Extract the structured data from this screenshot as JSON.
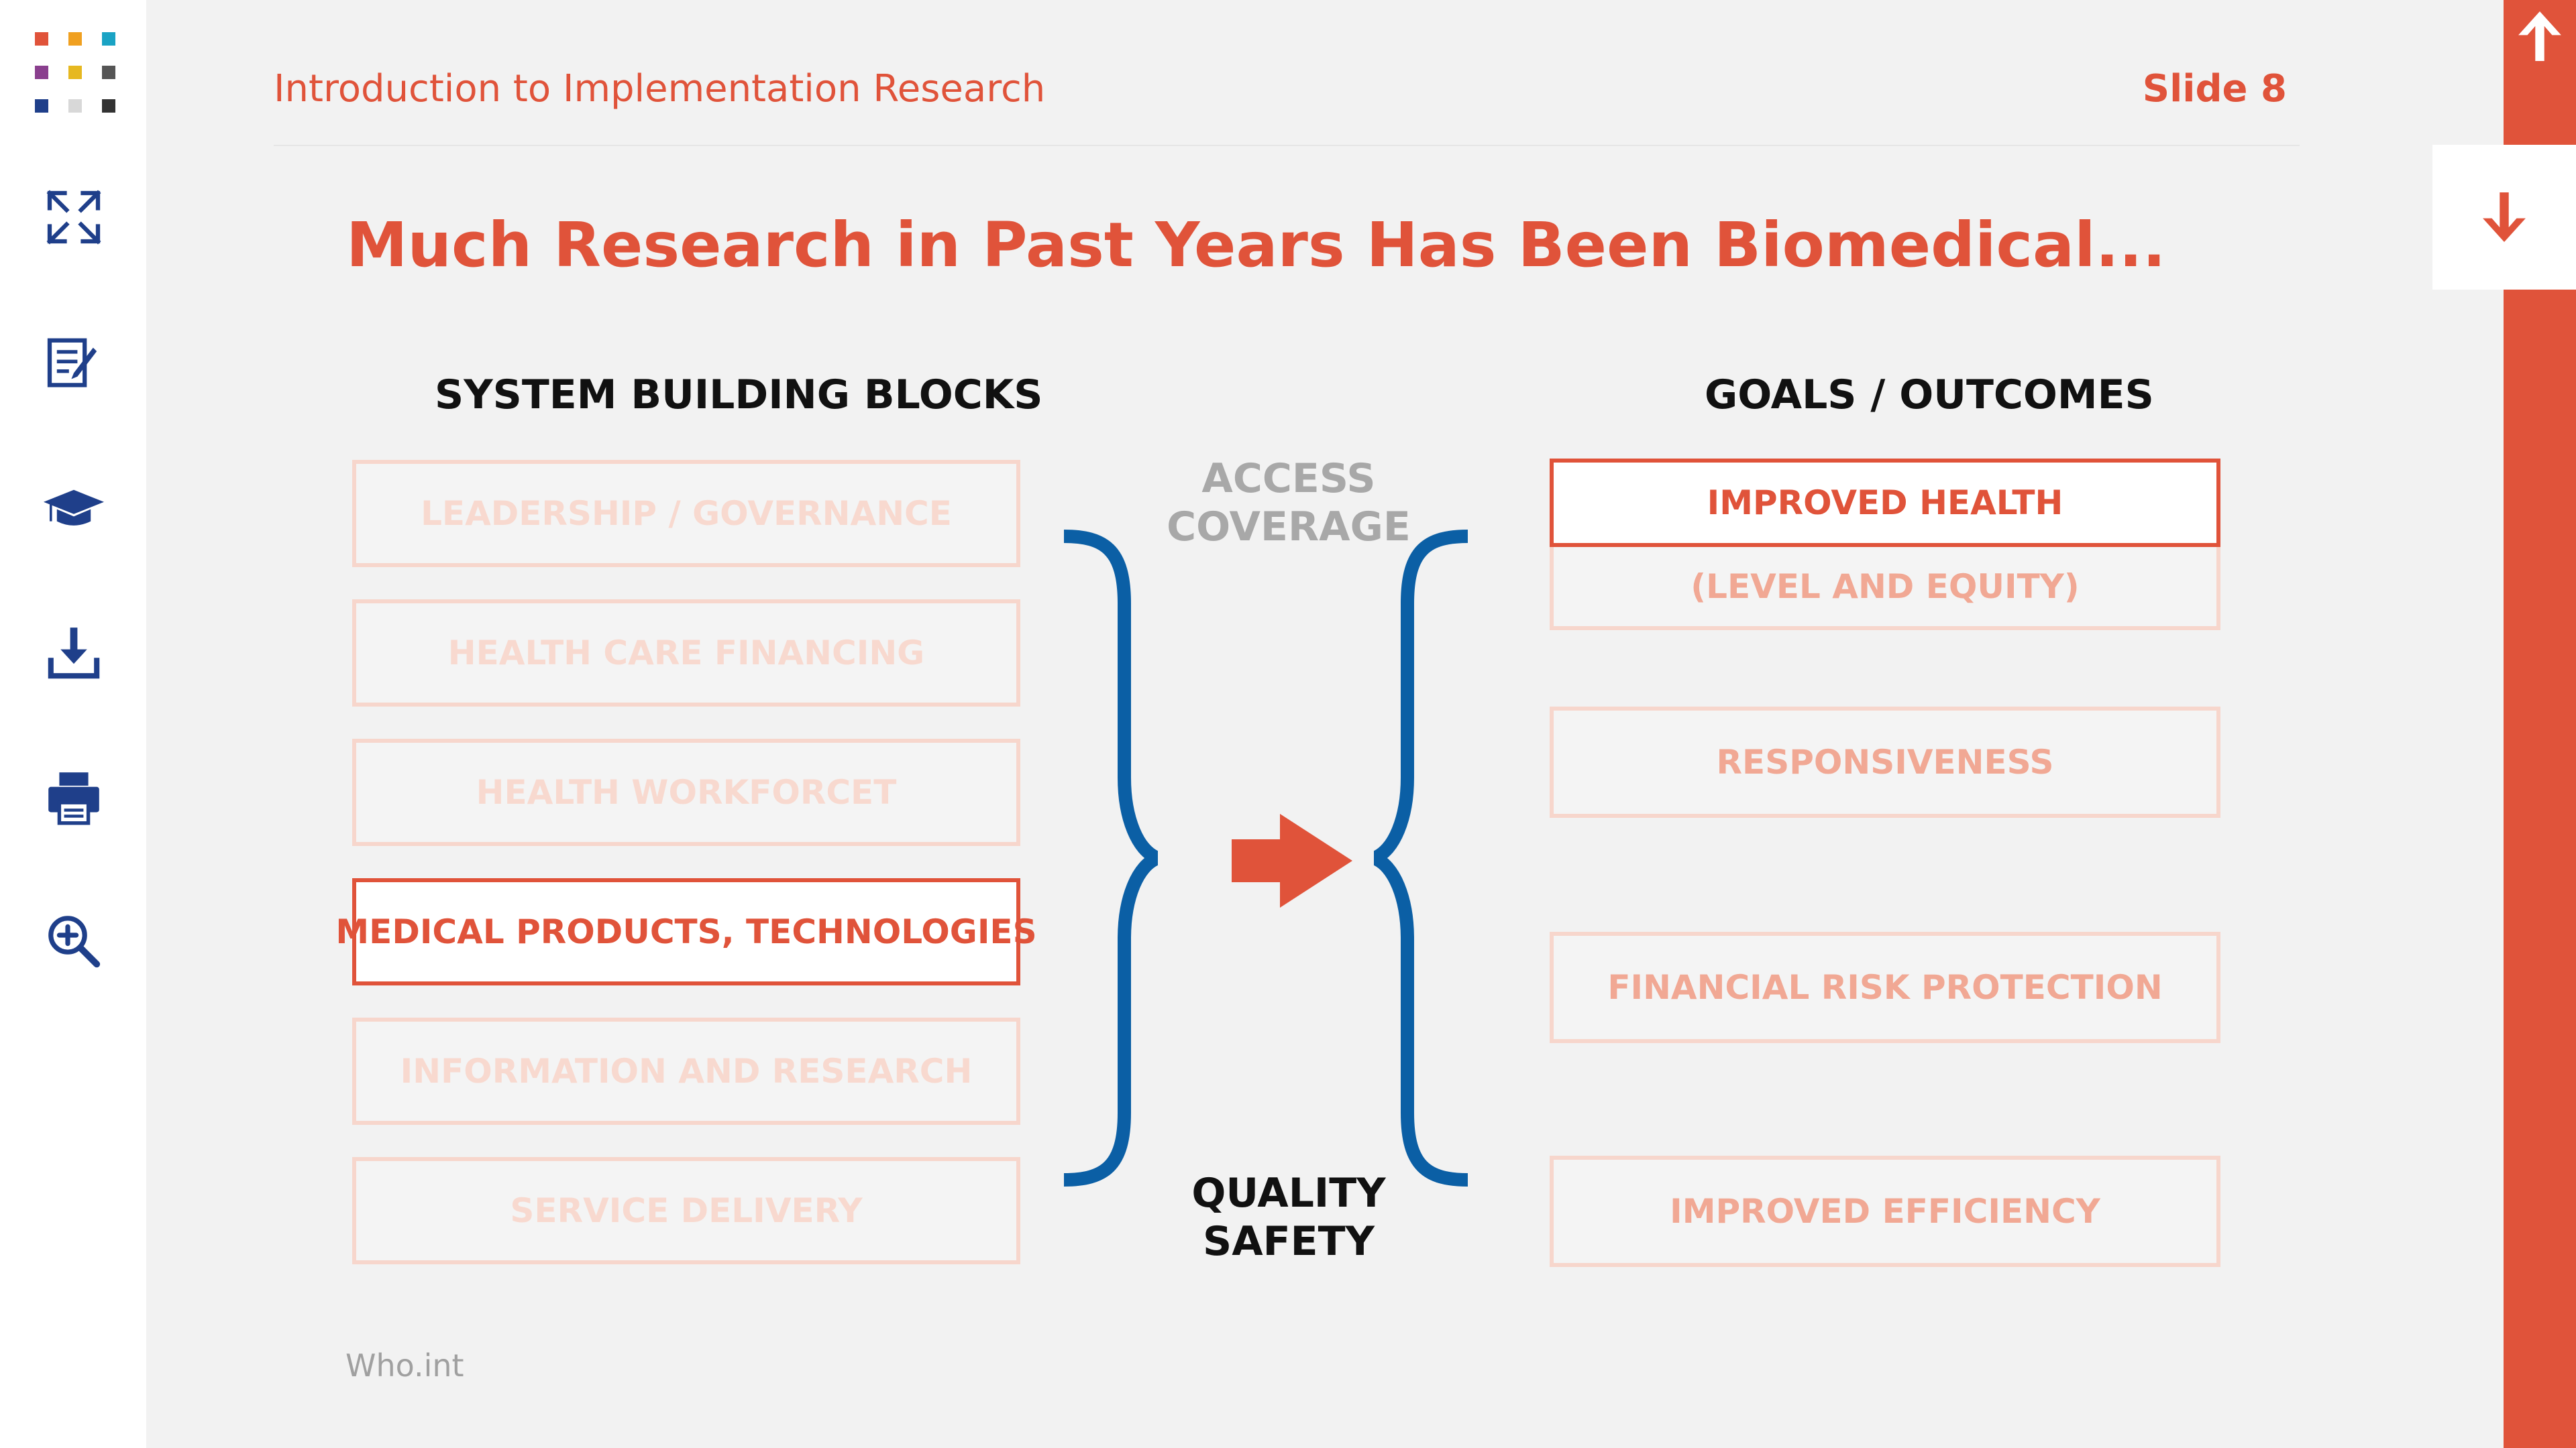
{
  "header": {
    "course_title": "Introduction to Implementation Research",
    "slide_label": "Slide 8"
  },
  "sidebar": {
    "icons": [
      "apps-grid-icon",
      "fullscreen-icon",
      "notes-icon",
      "education-icon",
      "download-icon",
      "print-icon",
      "zoom-in-icon"
    ]
  },
  "slide": {
    "title": "Much Research in Past Years Has Been Biomedical...",
    "left_heading": "SYSTEM BUILDING BLOCKS",
    "right_heading": "GOALS / OUTCOMES",
    "building_blocks": [
      {
        "label": "LEADERSHIP / GOVERNANCE",
        "highlighted": false
      },
      {
        "label": "HEALTH CARE FINANCING",
        "highlighted": false
      },
      {
        "label": "HEALTH WORKFORCET",
        "highlighted": false
      },
      {
        "label": "MEDICAL PRODUCTS, TECHNOLOGIES",
        "highlighted": true
      },
      {
        "label": "INFORMATION AND RESEARCH",
        "highlighted": false
      },
      {
        "label": "SERVICE DELIVERY",
        "highlighted": false
      }
    ],
    "middle_top": [
      "ACCESS",
      "COVERAGE"
    ],
    "middle_bottom": [
      "QUALITY",
      "SAFETY"
    ],
    "goals": {
      "improved_health": "IMPROVED HEALTH",
      "level_equity": "(LEVEL AND EQUITY)",
      "responsiveness": "RESPONSIVENESS",
      "financial_risk": "FINANCIAL RISK PROTECTION",
      "efficiency": "IMPROVED EFFICIENCY"
    },
    "source": "Who.int"
  },
  "colors": {
    "accent": "#e0533a",
    "brace": "#0b5fa5",
    "sidebar_icon": "#1f3f8a",
    "faded_text": "#f8d9cf",
    "grey_text": "#a8a8a8"
  }
}
